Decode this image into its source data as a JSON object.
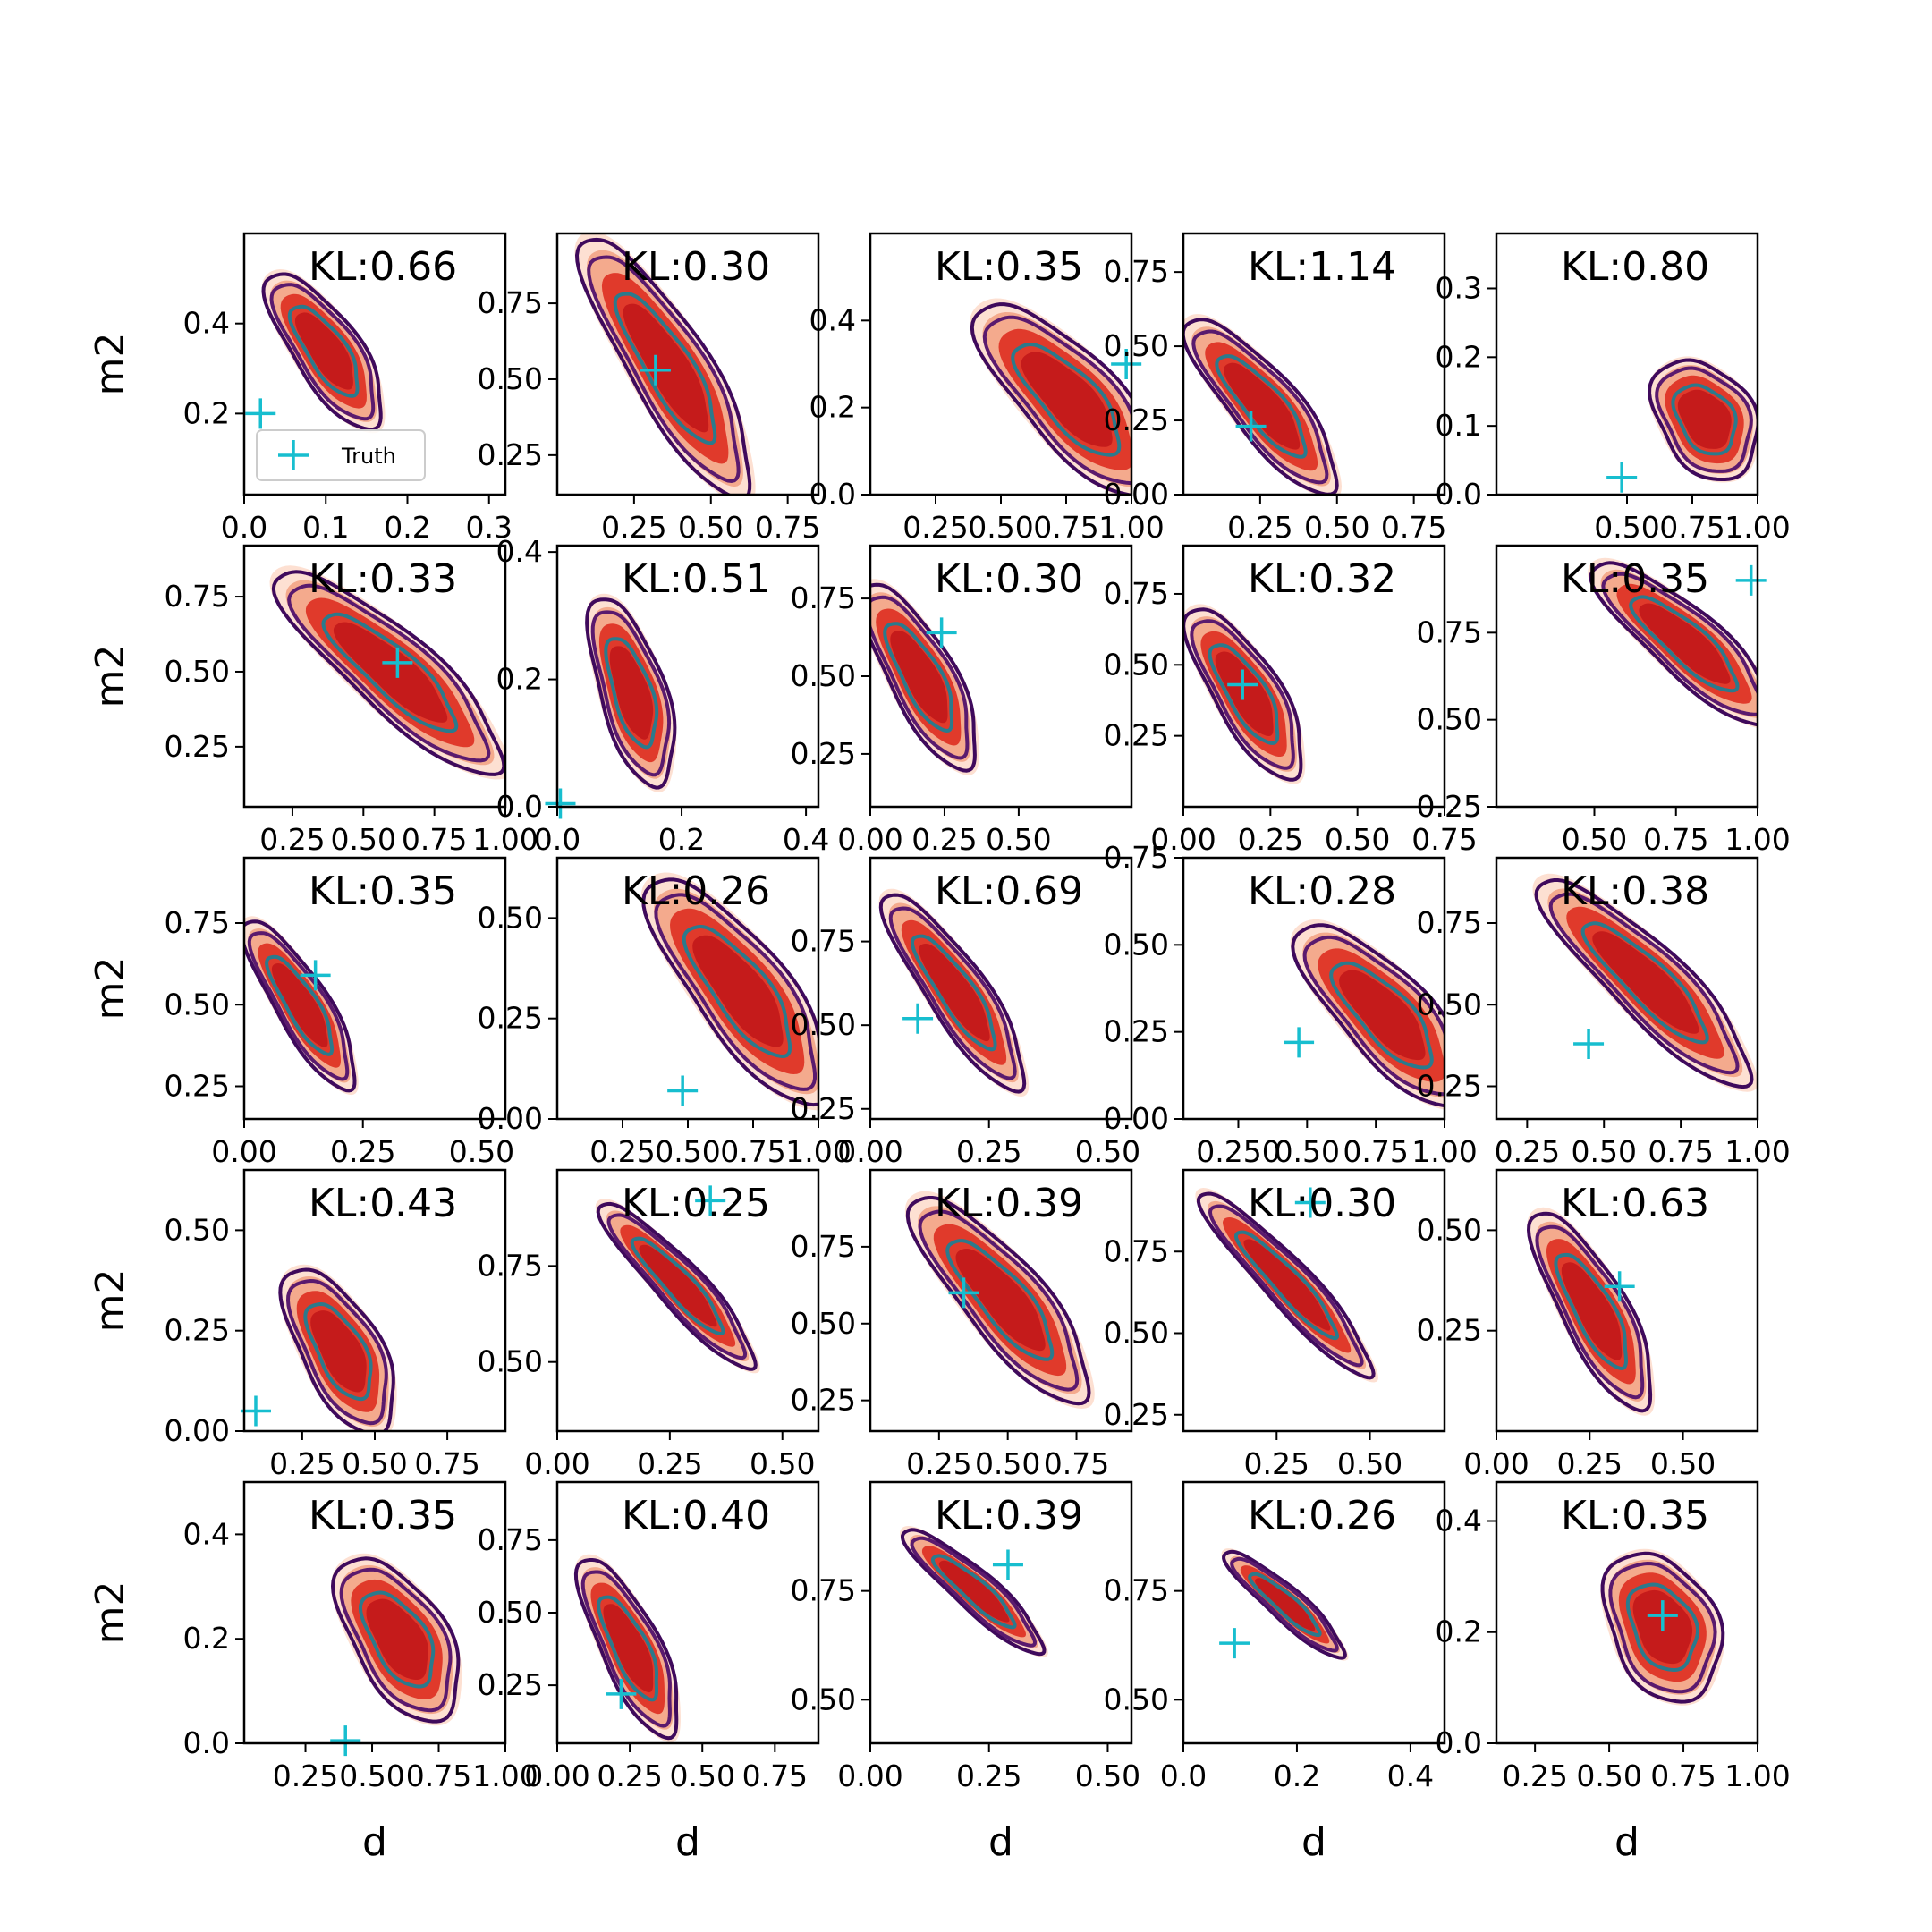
{
  "figure": {
    "x_axis_label": "d",
    "y_axis_label": "m2",
    "legend_label": "Truth",
    "colors": {
      "fill_outer": "#fde0d2",
      "fill_mid": "#f4aa8d",
      "fill_inner": "#e03a2b",
      "fill_core": "#c51b1b",
      "contour_outer": "#3f0a5c",
      "contour_mid": "#5a1a6e",
      "contour_inner": "#2b7a8c",
      "truth_marker": "#17becf",
      "frame": "#000000"
    }
  },
  "chart_data": [
    {
      "type": "scatter",
      "title": "KL:0.66",
      "xlabel": "",
      "ylabel": "m2",
      "xlim": [
        0,
        0.32
      ],
      "ylim": [
        0.02,
        0.6
      ],
      "xticks": [
        "0.0",
        "0.1",
        "0.2",
        "0.3"
      ],
      "xtick_values": [
        0,
        0.1,
        0.2,
        0.3
      ],
      "yticks": [
        "0.2",
        "0.4"
      ],
      "ytick_values": [
        0.2,
        0.4
      ],
      "truth": [
        0.02,
        0.2
      ],
      "legend": true,
      "blob": {
        "cx": 0.1,
        "cy": 0.34,
        "rx": 0.1,
        "ry": 0.28,
        "angle": -0.6
      }
    },
    {
      "type": "scatter",
      "title": "KL:0.30",
      "xlabel": "",
      "ylabel": "",
      "xlim": [
        0,
        0.85
      ],
      "ylim": [
        0.12,
        0.98
      ],
      "xticks": [
        "0.25",
        "0.50",
        "0.75"
      ],
      "xtick_values": [
        0.25,
        0.5,
        0.75
      ],
      "yticks": [
        "0.25",
        "0.50",
        "0.75"
      ],
      "ytick_values": [
        0.25,
        0.5,
        0.75
      ],
      "truth": [
        0.32,
        0.53
      ],
      "legend": false,
      "blob": {
        "cx": 0.36,
        "cy": 0.54,
        "rx": 0.12,
        "ry": 0.46,
        "angle": -0.55
      }
    },
    {
      "type": "scatter",
      "title": "KL:0.35",
      "xlabel": "",
      "ylabel": "",
      "xlim": [
        0,
        1
      ],
      "ylim": [
        0,
        0.6
      ],
      "xticks": [
        "0.25",
        "0.50",
        "0.75",
        "1.00"
      ],
      "xtick_values": [
        0.25,
        0.5,
        0.75,
        1
      ],
      "yticks": [
        "0.0",
        "0.2",
        "0.4"
      ],
      "ytick_values": [
        0,
        0.2,
        0.4
      ],
      "truth": [
        0.98,
        0.3
      ],
      "legend": false,
      "blob": {
        "cx": 0.76,
        "cy": 0.22,
        "rx": 0.14,
        "ry": 0.38,
        "angle": -0.75
      }
    },
    {
      "type": "scatter",
      "title": "KL:1.14",
      "xlabel": "",
      "ylabel": "",
      "xlim": [
        0,
        0.85
      ],
      "ylim": [
        0,
        0.88
      ],
      "xticks": [
        "0.25",
        "0.50",
        "0.75"
      ],
      "xtick_values": [
        0.25,
        0.5,
        0.75
      ],
      "yticks": [
        "0.00",
        "0.25",
        "0.50",
        "0.75"
      ],
      "ytick_values": [
        0,
        0.25,
        0.5,
        0.75
      ],
      "truth": [
        0.22,
        0.23
      ],
      "legend": false,
      "blob": {
        "cx": 0.26,
        "cy": 0.3,
        "rx": 0.1,
        "ry": 0.34,
        "angle": -0.7
      }
    },
    {
      "type": "scatter",
      "title": "KL:0.80",
      "xlabel": "",
      "ylabel": "",
      "xlim": [
        0,
        1
      ],
      "ylim": [
        0,
        0.38
      ],
      "xticks": [
        "0.50",
        "0.75",
        "1.00"
      ],
      "xtick_values": [
        0.5,
        0.75,
        1
      ],
      "yticks": [
        "0.0",
        "0.1",
        "0.2",
        "0.3"
      ],
      "ytick_values": [
        0,
        0.1,
        0.2,
        0.3
      ],
      "truth": [
        0.48,
        0.025
      ],
      "legend": false,
      "blob": {
        "cx": 0.8,
        "cy": 0.11,
        "rx": 0.14,
        "ry": 0.2,
        "angle": -0.6
      }
    },
    {
      "type": "scatter",
      "title": "KL:0.33",
      "xlabel": "",
      "ylabel": "m2",
      "xlim": [
        0.08,
        1
      ],
      "ylim": [
        0.05,
        0.92
      ],
      "xticks": [
        "0.25",
        "0.50",
        "0.75",
        "1.00"
      ],
      "xtick_values": [
        0.25,
        0.5,
        0.75,
        1
      ],
      "yticks": [
        "0.25",
        "0.50",
        "0.75"
      ],
      "ytick_values": [
        0.25,
        0.5,
        0.75
      ],
      "truth": [
        0.62,
        0.53
      ],
      "legend": false,
      "blob": {
        "cx": 0.6,
        "cy": 0.5,
        "rx": 0.12,
        "ry": 0.45,
        "angle": -0.85
      }
    },
    {
      "type": "scatter",
      "title": "KL:0.51",
      "xlabel": "",
      "ylabel": "",
      "xlim": [
        0,
        0.42
      ],
      "ylim": [
        0,
        0.41
      ],
      "xticks": [
        "0.0",
        "0.2",
        "0.4"
      ],
      "xtick_values": [
        0,
        0.2,
        0.4
      ],
      "yticks": [
        "0.0",
        "0.2",
        "0.4"
      ],
      "ytick_values": [
        0,
        0.2,
        0.4
      ],
      "truth": [
        0.005,
        0.005
      ],
      "legend": false,
      "blob": {
        "cx": 0.12,
        "cy": 0.18,
        "rx": 0.1,
        "ry": 0.3,
        "angle": -0.3
      }
    },
    {
      "type": "scatter",
      "title": "KL:0.30",
      "xlabel": "",
      "ylabel": "",
      "xlim": [
        0,
        0.88
      ],
      "ylim": [
        0.08,
        0.92
      ],
      "xticks": [
        "0.00",
        "0.25",
        "0.50"
      ],
      "xtick_values": [
        0,
        0.25,
        0.5
      ],
      "yticks": [
        "0.25",
        "0.50",
        "0.75"
      ],
      "ytick_values": [
        0.25,
        0.5,
        0.75
      ],
      "truth": [
        0.24,
        0.64
      ],
      "legend": false,
      "blob": {
        "cx": 0.17,
        "cy": 0.5,
        "rx": 0.1,
        "ry": 0.32,
        "angle": -0.5
      }
    },
    {
      "type": "scatter",
      "title": "KL:0.32",
      "xlabel": "",
      "ylabel": "",
      "xlim": [
        0,
        0.75
      ],
      "ylim": [
        0,
        0.92
      ],
      "xticks": [
        "0.00",
        "0.25",
        "0.50",
        "0.75"
      ],
      "xtick_values": [
        0,
        0.25,
        0.5,
        0.75
      ],
      "yticks": [
        "0.25",
        "0.50",
        "0.75"
      ],
      "ytick_values": [
        0.25,
        0.5,
        0.75
      ],
      "truth": [
        0.17,
        0.43
      ],
      "legend": false,
      "blob": {
        "cx": 0.18,
        "cy": 0.4,
        "rx": 0.1,
        "ry": 0.3,
        "angle": -0.55
      }
    },
    {
      "type": "scatter",
      "title": "KL:0.35",
      "xlabel": "",
      "ylabel": "",
      "xlim": [
        0.2,
        1
      ],
      "ylim": [
        0.25,
        1
      ],
      "xticks": [
        "0.50",
        "0.75",
        "1.00"
      ],
      "xtick_values": [
        0.5,
        0.75,
        1
      ],
      "yticks": [
        "0.25",
        "0.50",
        "0.75"
      ],
      "ytick_values": [
        0.25,
        0.5,
        0.75
      ],
      "truth": [
        0.98,
        0.9
      ],
      "legend": false,
      "blob": {
        "cx": 0.78,
        "cy": 0.72,
        "rx": 0.1,
        "ry": 0.36,
        "angle": -0.85
      }
    },
    {
      "type": "scatter",
      "title": "KL:0.35",
      "xlabel": "",
      "ylabel": "m2",
      "xlim": [
        0,
        0.55
      ],
      "ylim": [
        0.15,
        0.95
      ],
      "xticks": [
        "0.00",
        "0.25",
        "0.50"
      ],
      "xtick_values": [
        0,
        0.25,
        0.5
      ],
      "yticks": [
        "0.25",
        "0.50",
        "0.75"
      ],
      "ytick_values": [
        0.25,
        0.5,
        0.75
      ],
      "truth": [
        0.15,
        0.59
      ],
      "legend": false,
      "blob": {
        "cx": 0.12,
        "cy": 0.5,
        "rx": 0.08,
        "ry": 0.3,
        "angle": -0.55
      }
    },
    {
      "type": "scatter",
      "title": "KL:0.26",
      "xlabel": "",
      "ylabel": "",
      "xlim": [
        0,
        1
      ],
      "ylim": [
        0,
        0.65
      ],
      "xticks": [
        "0.25",
        "0.50",
        "0.75",
        "1.00"
      ],
      "xtick_values": [
        0.25,
        0.5,
        0.75,
        1
      ],
      "yticks": [
        "0.00",
        "0.25",
        "0.50"
      ],
      "ytick_values": [
        0,
        0.25,
        0.5
      ],
      "truth": [
        0.48,
        0.07
      ],
      "legend": false,
      "blob": {
        "cx": 0.7,
        "cy": 0.32,
        "rx": 0.14,
        "ry": 0.42,
        "angle": -0.65
      }
    },
    {
      "type": "scatter",
      "title": "KL:0.69",
      "xlabel": "",
      "ylabel": "",
      "xlim": [
        0,
        0.55
      ],
      "ylim": [
        0.22,
        1
      ],
      "xticks": [
        "0.00",
        "0.25",
        "0.50"
      ],
      "xtick_values": [
        0,
        0.25,
        0.5
      ],
      "yticks": [
        "0.25",
        "0.50",
        "0.75"
      ],
      "ytick_values": [
        0.25,
        0.5,
        0.75
      ],
      "truth": [
        0.1,
        0.52
      ],
      "legend": false,
      "blob": {
        "cx": 0.18,
        "cy": 0.6,
        "rx": 0.09,
        "ry": 0.36,
        "angle": -0.6
      }
    },
    {
      "type": "scatter",
      "title": "KL:0.28",
      "xlabel": "",
      "ylabel": "",
      "xlim": [
        0.05,
        1
      ],
      "ylim": [
        0,
        0.75
      ],
      "xticks": [
        "0.250",
        "0.50",
        "0.75",
        "1.00"
      ],
      "xtick_values": [
        0.25,
        0.5,
        0.75,
        1
      ],
      "yticks": [
        "0.00",
        "0.25",
        "0.50",
        "0.75"
      ],
      "ytick_values": [
        0,
        0.25,
        0.5,
        0.75
      ],
      "truth": [
        0.47,
        0.22
      ],
      "legend": false,
      "blob": {
        "cx": 0.78,
        "cy": 0.3,
        "rx": 0.13,
        "ry": 0.36,
        "angle": -0.75
      }
    },
    {
      "type": "scatter",
      "title": "KL:0.38",
      "xlabel": "",
      "ylabel": "",
      "xlim": [
        0.15,
        1
      ],
      "ylim": [
        0.15,
        0.95
      ],
      "xticks": [
        "0.25",
        "0.50",
        "0.75",
        "1.00"
      ],
      "xtick_values": [
        0.25,
        0.5,
        0.75,
        1
      ],
      "yticks": [
        "0.25",
        "0.50",
        "0.75"
      ],
      "ytick_values": [
        0.25,
        0.5,
        0.75
      ],
      "truth": [
        0.45,
        0.38
      ],
      "legend": false,
      "blob": {
        "cx": 0.64,
        "cy": 0.57,
        "rx": 0.11,
        "ry": 0.44,
        "angle": -0.8
      }
    },
    {
      "type": "scatter",
      "title": "KL:0.43",
      "xlabel": "",
      "ylabel": "m2",
      "xlim": [
        0.05,
        0.95
      ],
      "ylim": [
        0,
        0.65
      ],
      "xticks": [
        "0.25",
        "0.50",
        "0.75"
      ],
      "xtick_values": [
        0.25,
        0.5,
        0.75
      ],
      "yticks": [
        "0.00",
        "0.25",
        "0.50"
      ],
      "ytick_values": [
        0,
        0.25,
        0.5
      ],
      "truth": [
        0.09,
        0.05
      ],
      "legend": false,
      "blob": {
        "cx": 0.38,
        "cy": 0.2,
        "rx": 0.12,
        "ry": 0.28,
        "angle": -0.5
      }
    },
    {
      "type": "scatter",
      "title": "KL:0.25",
      "xlabel": "",
      "ylabel": "",
      "xlim": [
        0,
        0.58
      ],
      "ylim": [
        0.32,
        1
      ],
      "xticks": [
        "0.00",
        "0.25",
        "0.50"
      ],
      "xtick_values": [
        0,
        0.25,
        0.5
      ],
      "yticks": [
        "0.50",
        "0.75"
      ],
      "ytick_values": [
        0.5,
        0.75
      ],
      "truth": [
        0.34,
        0.92
      ],
      "legend": false,
      "blob": {
        "cx": 0.27,
        "cy": 0.7,
        "rx": 0.07,
        "ry": 0.34,
        "angle": -0.75
      }
    },
    {
      "type": "scatter",
      "title": "KL:0.39",
      "xlabel": "",
      "ylabel": "",
      "xlim": [
        0,
        0.95
      ],
      "ylim": [
        0.15,
        1
      ],
      "xticks": [
        "0.25",
        "0.50",
        "0.75"
      ],
      "xtick_values": [
        0.25,
        0.5,
        0.75
      ],
      "yticks": [
        "0.25",
        "0.50",
        "0.75"
      ],
      "ytick_values": [
        0.25,
        0.5,
        0.75
      ],
      "truth": [
        0.34,
        0.6
      ],
      "legend": false,
      "blob": {
        "cx": 0.48,
        "cy": 0.58,
        "rx": 0.12,
        "ry": 0.4,
        "angle": -0.7
      }
    },
    {
      "type": "scatter",
      "title": "KL:0.30",
      "xlabel": "",
      "ylabel": "",
      "xlim": [
        0,
        0.7
      ],
      "ylim": [
        0.2,
        1
      ],
      "xticks": [
        "0.25",
        "0.50"
      ],
      "xtick_values": [
        0.25,
        0.5
      ],
      "yticks": [
        "0.25",
        "0.50",
        "0.75"
      ],
      "ytick_values": [
        0.25,
        0.5,
        0.75
      ],
      "truth": [
        0.34,
        0.9
      ],
      "legend": false,
      "blob": {
        "cx": 0.28,
        "cy": 0.65,
        "rx": 0.07,
        "ry": 0.38,
        "angle": -0.75
      }
    },
    {
      "type": "scatter",
      "title": "KL:0.63",
      "xlabel": "",
      "ylabel": "",
      "xlim": [
        0,
        0.7
      ],
      "ylim": [
        0,
        0.65
      ],
      "xticks": [
        "0.00",
        "0.25",
        "0.50"
      ],
      "xtick_values": [
        0,
        0.25,
        0.5
      ],
      "yticks": [
        "0.25",
        "0.50"
      ],
      "ytick_values": [
        0.25,
        0.5
      ],
      "truth": [
        0.33,
        0.36
      ],
      "legend": false,
      "blob": {
        "cx": 0.26,
        "cy": 0.3,
        "rx": 0.1,
        "ry": 0.34,
        "angle": -0.5
      }
    },
    {
      "type": "scatter",
      "title": "KL:0.35",
      "xlabel": "d",
      "ylabel": "m2",
      "xlim": [
        0.02,
        1
      ],
      "ylim": [
        0,
        0.5
      ],
      "xticks": [
        "0.25",
        "0.50",
        "0.75",
        "1.00"
      ],
      "xtick_values": [
        0.25,
        0.5,
        0.75,
        1
      ],
      "yticks": [
        "0.0",
        "0.2",
        "0.4"
      ],
      "ytick_values": [
        0,
        0.2,
        0.4
      ],
      "truth": [
        0.4,
        0.005
      ],
      "legend": false,
      "blob": {
        "cx": 0.6,
        "cy": 0.2,
        "rx": 0.14,
        "ry": 0.28,
        "angle": -0.55
      }
    },
    {
      "type": "scatter",
      "title": "KL:0.40",
      "xlabel": "d",
      "ylabel": "",
      "xlim": [
        0,
        0.9
      ],
      "ylim": [
        0.05,
        0.95
      ],
      "xticks": [
        "0.00",
        "0.25",
        "0.50",
        "0.75"
      ],
      "xtick_values": [
        0,
        0.25,
        0.5,
        0.75
      ],
      "yticks": [
        "0.25",
        "0.50",
        "0.75"
      ],
      "ytick_values": [
        0.25,
        0.5,
        0.75
      ],
      "truth": [
        0.22,
        0.22
      ],
      "legend": false,
      "blob": {
        "cx": 0.25,
        "cy": 0.38,
        "rx": 0.09,
        "ry": 0.3,
        "angle": -0.45
      }
    },
    {
      "type": "scatter",
      "title": "KL:0.39",
      "xlabel": "d",
      "ylabel": "",
      "xlim": [
        0,
        0.55
      ],
      "ylim": [
        0.4,
        1
      ],
      "xticks": [
        "0.00",
        "0.25",
        "0.50"
      ],
      "xtick_values": [
        0,
        0.25,
        0.5
      ],
      "yticks": [
        "0.50",
        "0.75"
      ],
      "ytick_values": [
        0.5,
        0.75
      ],
      "truth": [
        0.29,
        0.81
      ],
      "legend": false,
      "blob": {
        "cx": 0.22,
        "cy": 0.75,
        "rx": 0.06,
        "ry": 0.28,
        "angle": -0.85
      }
    },
    {
      "type": "scatter",
      "title": "KL:0.26",
      "xlabel": "d",
      "ylabel": "",
      "xlim": [
        0,
        0.46
      ],
      "ylim": [
        0.4,
        1
      ],
      "xticks": [
        "0.0",
        "0.2",
        "0.4"
      ],
      "xtick_values": [
        0,
        0.2,
        0.4
      ],
      "yticks": [
        "0.50",
        "0.75"
      ],
      "ytick_values": [
        0.5,
        0.75
      ],
      "truth": [
        0.09,
        0.63
      ],
      "legend": false,
      "blob": {
        "cx": 0.18,
        "cy": 0.72,
        "rx": 0.05,
        "ry": 0.24,
        "angle": -0.85
      }
    },
    {
      "type": "scatter",
      "title": "KL:0.35",
      "xlabel": "d",
      "ylabel": "",
      "xlim": [
        0.12,
        1
      ],
      "ylim": [
        0,
        0.47
      ],
      "xticks": [
        "0.25",
        "0.50",
        "0.75",
        "1.00"
      ],
      "xtick_values": [
        0.25,
        0.5,
        0.75,
        1
      ],
      "yticks": [
        "0.0",
        "0.2",
        "0.4"
      ],
      "ytick_values": [
        0,
        0.2,
        0.4
      ],
      "truth": [
        0.68,
        0.23
      ],
      "legend": false,
      "blob": {
        "cx": 0.68,
        "cy": 0.21,
        "rx": 0.16,
        "ry": 0.24,
        "angle": -0.45
      }
    }
  ]
}
